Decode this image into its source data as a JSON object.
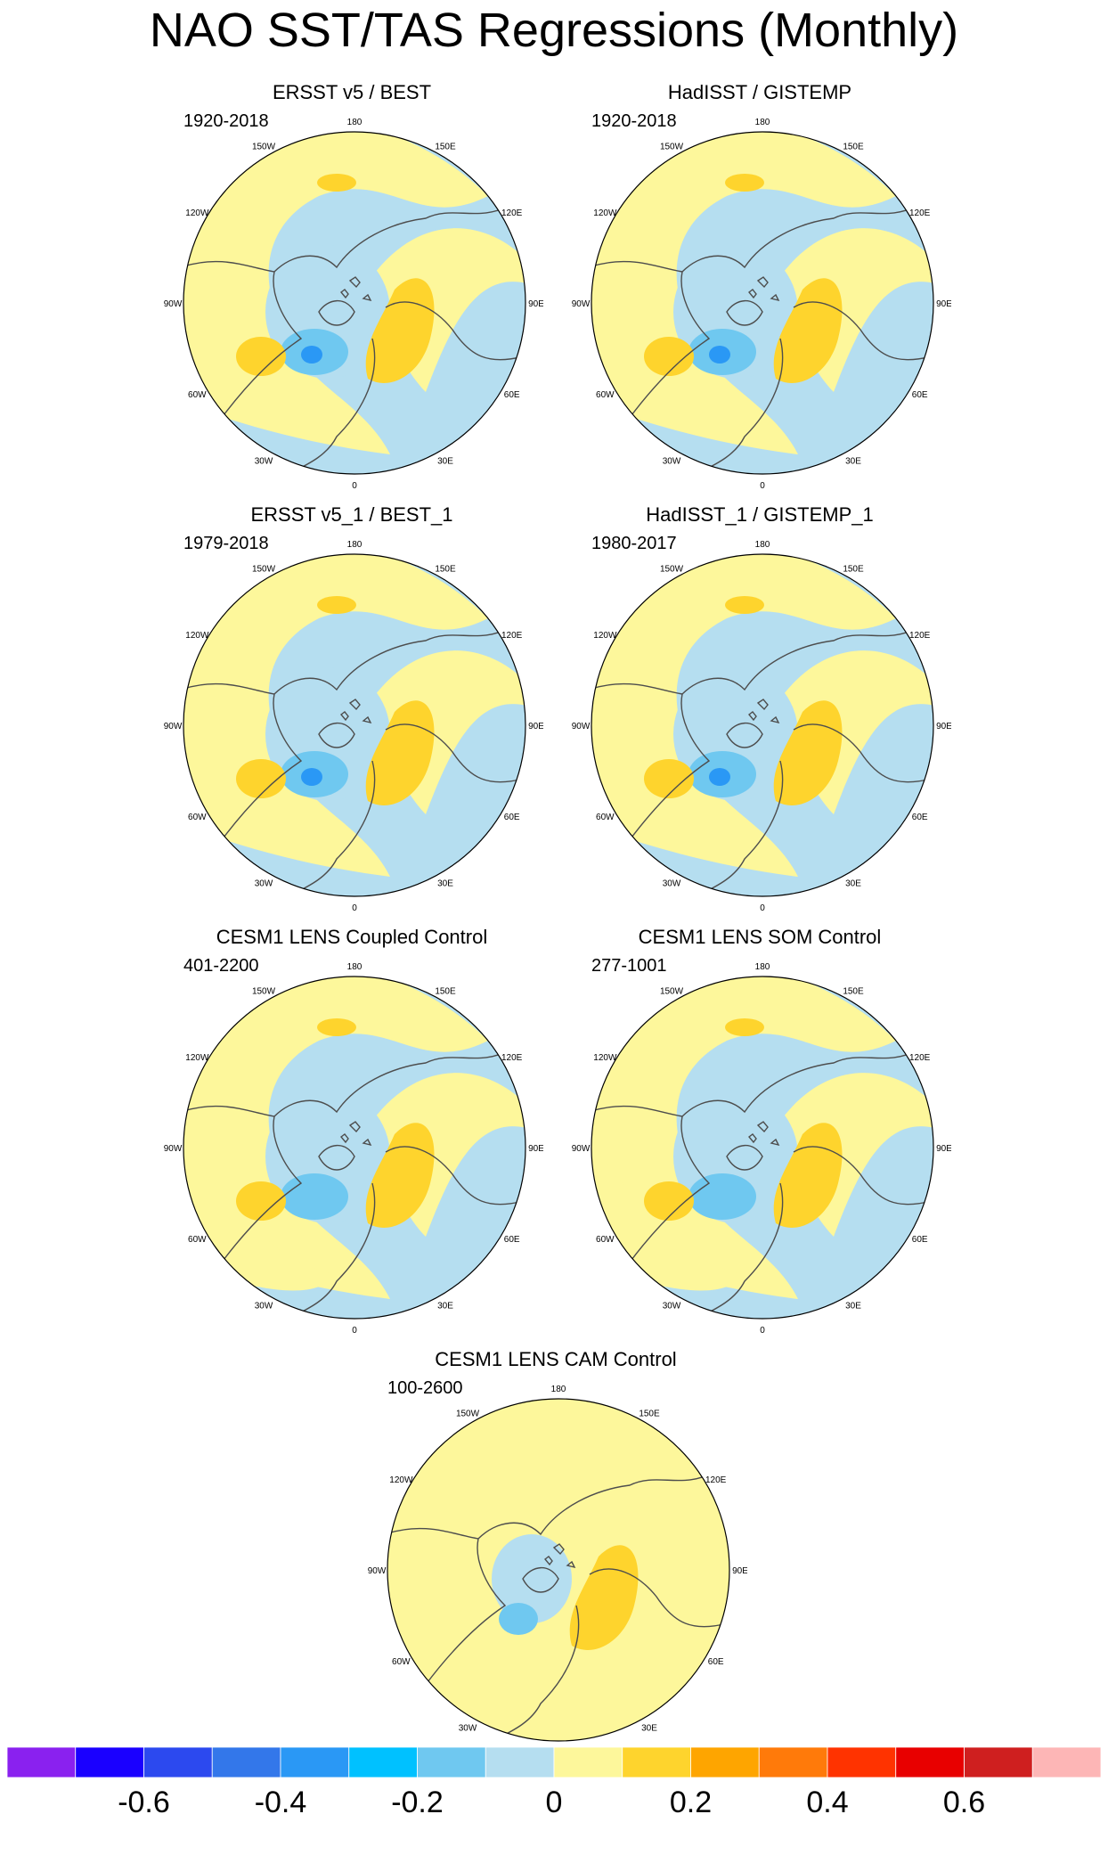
{
  "figure": {
    "title": "NAO SST/TAS Regressions (Monthly)"
  },
  "map_labels": {
    "lon_top": "180",
    "lon_bottom": "0",
    "lon_150w": "150W",
    "lon_150e": "150E",
    "lon_120w": "120W",
    "lon_120e": "120E",
    "lon_90w": "90W",
    "lon_90e": "90E",
    "lon_60w": "60W",
    "lon_60e": "60E",
    "lon_30w": "30W",
    "lon_30e": "30E"
  },
  "panels": [
    {
      "title": "ERSST v5 / BEST",
      "period": "1920-2018"
    },
    {
      "title": "HadISST / GISTEMP",
      "period": "1920-2018"
    },
    {
      "title": "ERSST v5_1 / BEST_1",
      "period": "1979-2018"
    },
    {
      "title": "HadISST_1 / GISTEMP_1",
      "period": "1980-2017"
    },
    {
      "title": "CESM1 LENS Coupled Control",
      "period": "401-2200"
    },
    {
      "title": "CESM1 LENS SOM Control",
      "period": "277-1001"
    },
    {
      "title": "CESM1 LENS CAM Control",
      "period": "100-2600"
    }
  ],
  "colorbar": {
    "colors": [
      "#8a21ef",
      "#1a00ff",
      "#2c49ef",
      "#3377ea",
      "#2a98f5",
      "#00c1ff",
      "#6fc8f0",
      "#b5def0",
      "#fdf79b",
      "#fed42d",
      "#fea500",
      "#ff7a0a",
      "#ff3300",
      "#e80000",
      "#cf1f1f",
      "#fdb6b6"
    ],
    "tick_labels": [
      "-0.6",
      "-0.4",
      "-0.2",
      "0",
      "0.2",
      "0.4",
      "0.6"
    ]
  }
}
